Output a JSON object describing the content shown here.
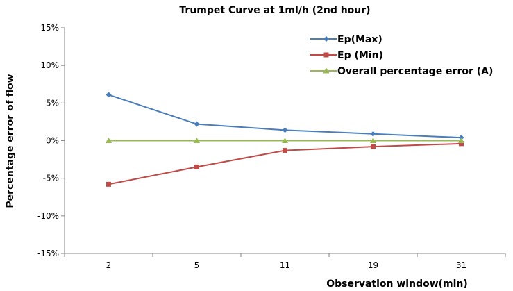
{
  "chart_data": {
    "type": "line",
    "title": "Trumpet Curve at 1ml/h (2nd hour)",
    "xlabel": "Observation window(min)",
    "ylabel": "Percentage error of flow",
    "categories": [
      "2",
      "5",
      "11",
      "19",
      "31"
    ],
    "y_ticks": [
      "15%",
      "10%",
      "5%",
      "0%",
      "-5%",
      "-10%",
      "-15%"
    ],
    "ylim": [
      -15,
      15
    ],
    "grid": false,
    "legend_position": "top-right",
    "series": [
      {
        "name": "Ep(Max)",
        "values": [
          6.1,
          2.2,
          1.4,
          0.9,
          0.4
        ],
        "color": "#4a7ebb",
        "marker": "diamond"
      },
      {
        "name": "Ep (Min)",
        "values": [
          -5.8,
          -3.5,
          -1.3,
          -0.8,
          -0.4
        ],
        "color": "#be4b48",
        "marker": "square"
      },
      {
        "name": "Overall percentage error (A)",
        "values": [
          0,
          0,
          0,
          0,
          0
        ],
        "color": "#98b954",
        "marker": "triangle"
      }
    ]
  }
}
